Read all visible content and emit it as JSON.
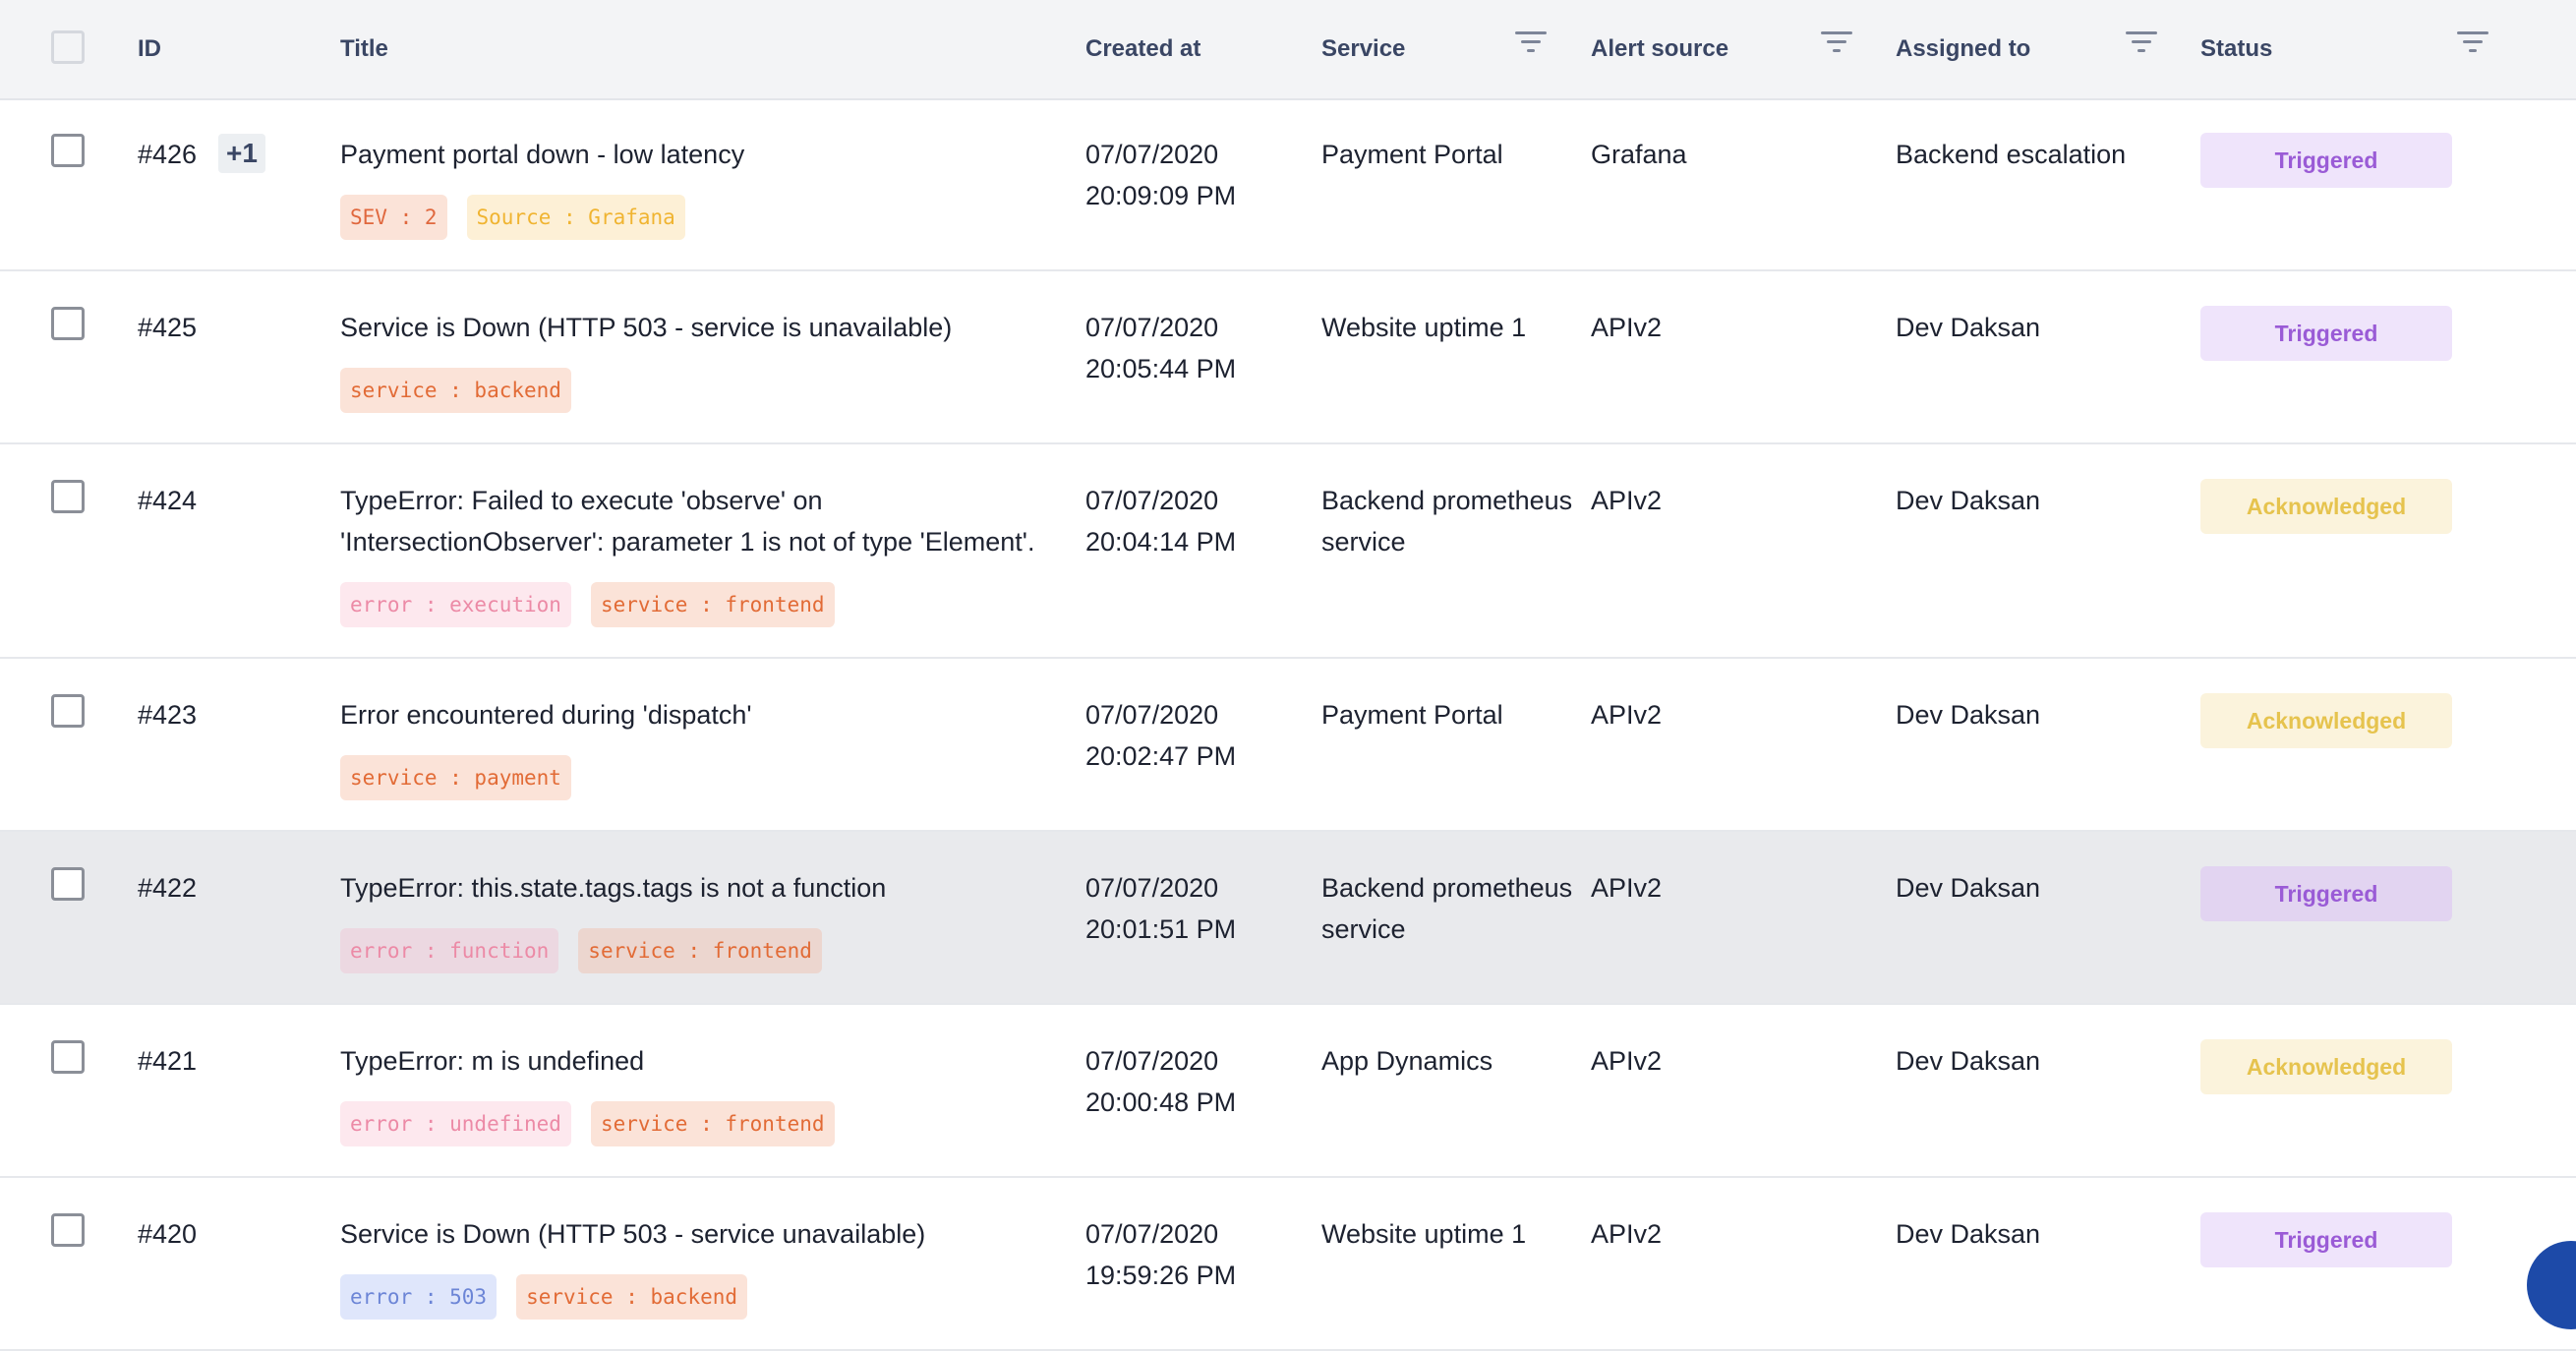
{
  "columns": {
    "id": "ID",
    "title": "Title",
    "created_at": "Created at",
    "service": "Service",
    "alert_source": "Alert source",
    "assigned_to": "Assigned to",
    "status": "Status"
  },
  "rows": [
    {
      "id": "#426",
      "extra": "+1",
      "title_lines": [
        "Payment portal down - low latency"
      ],
      "tags": [
        {
          "text": "SEV : 2",
          "kind": "sev"
        },
        {
          "text": "Source : Grafana",
          "kind": "source"
        }
      ],
      "date": "07/07/2020",
      "time": "20:09:09 PM",
      "service_lines": [
        "Payment Portal"
      ],
      "alert_source": "Grafana",
      "assigned_to": "Backend escalation",
      "status": "Triggered"
    },
    {
      "id": "#425",
      "title_lines": [
        "Service is Down (HTTP 503 - service is unavailable)"
      ],
      "tags": [
        {
          "text": "service : backend",
          "kind": "service"
        }
      ],
      "date": "07/07/2020",
      "time": "20:05:44 PM",
      "service_lines": [
        "Website uptime 1"
      ],
      "alert_source": "APIv2",
      "assigned_to": "Dev Daksan",
      "status": "Triggered"
    },
    {
      "id": "#424",
      "title_lines": [
        "TypeError: Failed to execute 'observe' on",
        "'IntersectionObserver': parameter 1 is not of type 'Element'."
      ],
      "tags": [
        {
          "text": "error : execution",
          "kind": "error"
        },
        {
          "text": "service : frontend",
          "kind": "service"
        }
      ],
      "date": "07/07/2020",
      "time": "20:04:14 PM",
      "service_lines": [
        "Backend prometheus",
        "service"
      ],
      "alert_source": "APIv2",
      "assigned_to": "Dev Daksan",
      "status": "Acknowledged"
    },
    {
      "id": "#423",
      "title_lines": [
        "Error encountered during 'dispatch'"
      ],
      "tags": [
        {
          "text": "service : payment",
          "kind": "service"
        }
      ],
      "date": "07/07/2020",
      "time": "20:02:47 PM",
      "service_lines": [
        "Payment Portal"
      ],
      "alert_source": "APIv2",
      "assigned_to": "Dev Daksan",
      "status": "Acknowledged"
    },
    {
      "id": "#422",
      "title_lines": [
        "TypeError: this.state.tags.tags is not a function"
      ],
      "tags": [
        {
          "text": "error : function",
          "kind": "error"
        },
        {
          "text": "service : frontend",
          "kind": "service"
        }
      ],
      "date": "07/07/2020",
      "time": "20:01:51 PM",
      "service_lines": [
        "Backend prometheus",
        "service"
      ],
      "alert_source": "APIv2",
      "assigned_to": "Dev Daksan",
      "status": "Triggered",
      "highlighted": true
    },
    {
      "id": "#421",
      "title_lines": [
        "TypeError: m is undefined"
      ],
      "tags": [
        {
          "text": "error : undefined",
          "kind": "error"
        },
        {
          "text": "service : frontend",
          "kind": "service"
        }
      ],
      "date": "07/07/2020",
      "time": "20:00:48 PM",
      "service_lines": [
        "App Dynamics"
      ],
      "alert_source": "APIv2",
      "assigned_to": "Dev Daksan",
      "status": "Acknowledged"
    },
    {
      "id": "#420",
      "title_lines": [
        "Service is Down (HTTP 503 - service unavailable)"
      ],
      "tags": [
        {
          "text": "error : 503",
          "kind": "blue"
        },
        {
          "text": "service : backend",
          "kind": "service"
        }
      ],
      "date": "07/07/2020",
      "time": "19:59:26 PM",
      "service_lines": [
        "Website uptime 1"
      ],
      "alert_source": "APIv2",
      "assigned_to": "Dev Daksan",
      "status": "Triggered"
    }
  ],
  "colors": {
    "header_bg": "#f3f4f6",
    "highlight_row_bg": "#e9eaed",
    "triggered": "#9a5bd6",
    "acknowledged": "#e6c34e"
  }
}
